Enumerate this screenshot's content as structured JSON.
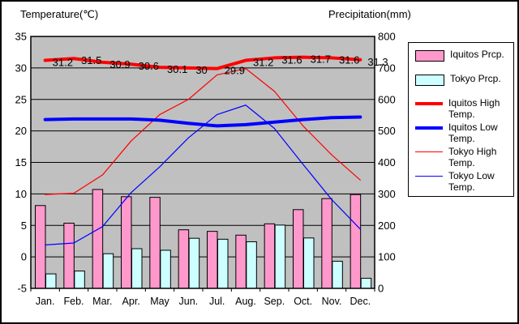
{
  "titles": {
    "left": "Temperature(℃)",
    "right": "Precipitation(mm)"
  },
  "colors": {
    "plot_background": "#C0C0C0",
    "grid_and_border": "#000000",
    "iquitos_precip_bar": "#FF99CC",
    "tokyo_precip_bar": "#CCFFFF",
    "high_temp_line": "#FF0000",
    "low_temp_line": "#0000FF",
    "text": "#000000",
    "page_background": "#FFFFFF"
  },
  "chart_data": {
    "type": "combo-bar-line",
    "categories": [
      "Jan.",
      "Feb.",
      "Mar.",
      "Apr.",
      "May",
      "Jun.",
      "Jul.",
      "Aug.",
      "Sep.",
      "Oct.",
      "Nov.",
      "Dec."
    ],
    "left_axis": {
      "title": "Temperature(℃)",
      "min": -5,
      "max": 35,
      "step": 5,
      "tick_labels": [
        "35",
        "30",
        "25",
        "20",
        "15",
        "10",
        "5",
        "0",
        "-5"
      ]
    },
    "right_axis": {
      "title": "Precipitation(mm)",
      "min": 0,
      "max": 800,
      "step": 100,
      "tick_labels": [
        "800",
        "700",
        "600",
        "500",
        "400",
        "300",
        "200",
        "100",
        "0"
      ]
    },
    "grid": true,
    "plot_bg": "#C0C0C0",
    "legend_position": "right",
    "series": [
      {
        "name": "Iquitos Prcp.",
        "type": "bar",
        "axis": "right",
        "color": "#FF99CC",
        "values": [
          263,
          207,
          314,
          291,
          289,
          186,
          181,
          169,
          205,
          250,
          285,
          298
        ]
      },
      {
        "name": "Tokyo Prcp.",
        "type": "bar",
        "axis": "right",
        "color": "#CCFFFF",
        "values": [
          46,
          55,
          110,
          126,
          121,
          159,
          156,
          148,
          201,
          160,
          86,
          32
        ]
      },
      {
        "name": "Iquitos High Temp.",
        "type": "line",
        "axis": "left",
        "color": "#FF0000",
        "line_width": 4,
        "values": [
          31.2,
          31.5,
          30.9,
          30.6,
          30.1,
          30.0,
          29.9,
          31.2,
          31.6,
          31.7,
          31.6,
          31.3
        ],
        "data_labels": [
          "31.2",
          "31.5",
          "30.9",
          "30.6",
          "30.1",
          "30",
          "29.9",
          "31.2",
          "31.6",
          "31.7",
          "31.6",
          "31.3"
        ]
      },
      {
        "name": "Iquitos Low Temp.",
        "type": "line",
        "axis": "left",
        "color": "#0000FF",
        "line_width": 4,
        "values": [
          21.8,
          21.9,
          21.9,
          21.9,
          21.7,
          21.2,
          20.8,
          21.0,
          21.4,
          21.8,
          22.1,
          22.2
        ]
      },
      {
        "name": "Tokyo High Temp.",
        "type": "line",
        "axis": "left",
        "color": "#FF0000",
        "line_width": 1,
        "values": [
          9.9,
          10.1,
          13.0,
          18.4,
          22.6,
          25.0,
          28.9,
          29.9,
          26.3,
          20.8,
          16.2,
          12.2
        ]
      },
      {
        "name": "Tokyo Low Temp.",
        "type": "line",
        "axis": "left",
        "color": "#0000FF",
        "line_width": 1,
        "values": [
          1.9,
          2.2,
          4.8,
          10.2,
          14.3,
          18.9,
          22.6,
          24.1,
          20.4,
          14.7,
          9.1,
          4.4
        ]
      }
    ]
  }
}
